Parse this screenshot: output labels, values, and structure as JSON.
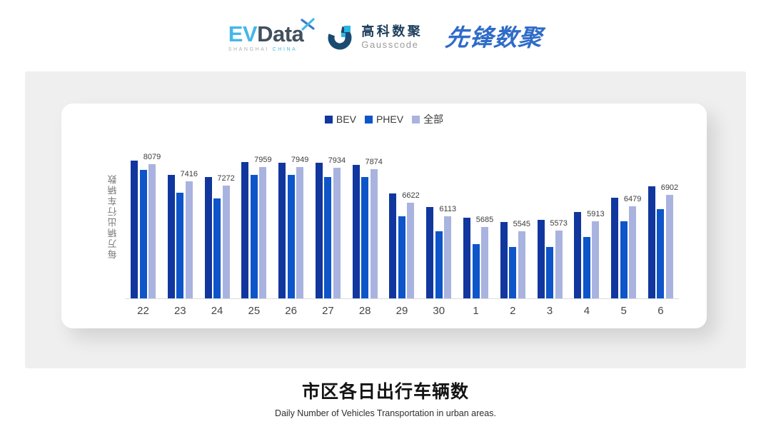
{
  "header": {
    "evdata": {
      "ev": "EV",
      "data_word": "Data",
      "sub_left": "SHANGHAI",
      "sub_right": "CHINA",
      "color_ev": "#45b7e9",
      "color_data": "#41505f",
      "color_sub_china": "#3fc0e8"
    },
    "gausscode": {
      "name_cn": "高科数聚",
      "name_en": "Gausscode",
      "mark_dark": "#1a4a70",
      "mark_cyan": "#2ab5e3"
    },
    "pioneer": {
      "name_cn": "先锋数聚",
      "color": "#2f6cc8"
    }
  },
  "chart_data": {
    "type": "bar",
    "title": "市区各日出行车辆数",
    "subtitle": "Daily Number of Vehicles Transportation in urban areas.",
    "ylabel": "每万辆出行车辆数",
    "xlabel": "",
    "categories": [
      "22",
      "23",
      "24",
      "25",
      "26",
      "27",
      "28",
      "29",
      "30",
      "1",
      "2",
      "3",
      "4",
      "5",
      "6"
    ],
    "series": [
      {
        "name": "BEV",
        "color": "#11379e",
        "data_labels": false,
        "values": [
          8210,
          7670,
          7570,
          8160,
          8130,
          8130,
          8050,
          6950,
          6460,
          6050,
          5890,
          5970,
          6270,
          6810,
          7220
        ]
      },
      {
        "name": "PHEV",
        "color": "#0d55c9",
        "data_labels": false,
        "values": [
          7860,
          7000,
          6780,
          7650,
          7650,
          7590,
          7590,
          6100,
          5540,
          5060,
          4950,
          4950,
          5330,
          5920,
          6380
        ]
      },
      {
        "name": "全部",
        "color": "#a9b3df",
        "data_labels": true,
        "values": [
          8079,
          7416,
          7272,
          7959,
          7949,
          7934,
          7874,
          6622,
          6113,
          5685,
          5545,
          5573,
          5913,
          6479,
          6902
        ]
      }
    ],
    "ylim": [
      3000,
      9200
    ],
    "grid": false,
    "legend_position": "top-center",
    "baseline_color": "#dcdcdc"
  }
}
